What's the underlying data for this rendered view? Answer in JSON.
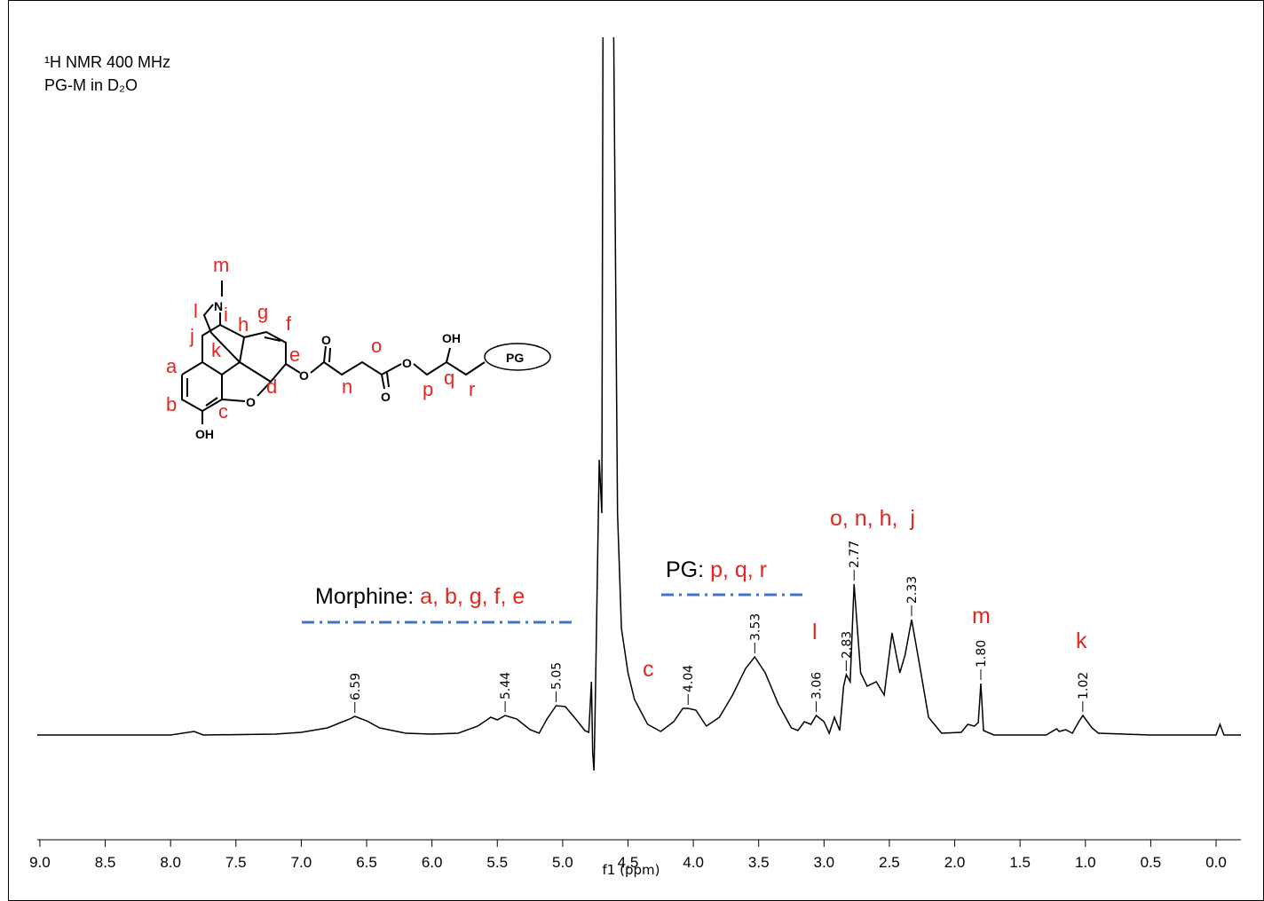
{
  "chart_data": {
    "type": "nmr",
    "title_lines": [
      "¹H NMR 400 MHz",
      "PG-M in D₂O"
    ],
    "x_label": "f1 (ppm)",
    "xlim": [
      9.02,
      -0.19
    ],
    "xticks": [
      {
        "value": 9,
        "label": "9.0"
      },
      8.5,
      {
        "value": 8,
        "label": "8.0"
      },
      7.5,
      {
        "value": 7,
        "label": "7.0"
      },
      6.5,
      {
        "value": 6,
        "label": "6.0"
      },
      5.5,
      {
        "value": 5,
        "label": "5.0"
      },
      4.5,
      {
        "value": 4,
        "label": "4.0"
      },
      3.5,
      {
        "value": 3,
        "label": "3.0"
      },
      2.5,
      {
        "value": 2,
        "label": "2.0"
      },
      1.5,
      {
        "value": 1,
        "label": "1.0"
      },
      0.5,
      {
        "value": 0,
        "label": "0.0"
      }
    ],
    "line_color": "#000000",
    "x": [
      9.02,
      8.0,
      7.82,
      7.75,
      7.2,
      7.0,
      6.8,
      6.7,
      6.63,
      6.59,
      6.5,
      6.4,
      6.2,
      6.0,
      5.8,
      5.65,
      5.55,
      5.5,
      5.44,
      5.35,
      5.25,
      5.18,
      5.12,
      5.05,
      4.98,
      4.9,
      4.83,
      4.8,
      4.78,
      4.77,
      4.76,
      4.75,
      4.72,
      4.7,
      4.68,
      4.66,
      4.63,
      4.61,
      4.58,
      4.55,
      4.5,
      4.45,
      4.35,
      4.25,
      4.15,
      4.08,
      4.04,
      3.98,
      3.9,
      3.8,
      3.7,
      3.6,
      3.53,
      3.45,
      3.35,
      3.25,
      3.2,
      3.15,
      3.1,
      3.06,
      3.0,
      2.96,
      2.92,
      2.88,
      2.85,
      2.83,
      2.8,
      2.77,
      2.72,
      2.67,
      2.6,
      2.54,
      2.48,
      2.42,
      2.38,
      2.33,
      2.27,
      2.2,
      2.1,
      1.95,
      1.9,
      1.85,
      1.82,
      1.8,
      1.78,
      1.7,
      1.3,
      1.22,
      1.2,
      1.15,
      1.1,
      1.05,
      1.02,
      0.95,
      0.9,
      0.5,
      0.0,
      -0.03,
      -0.06,
      -0.19
    ],
    "values": [
      0,
      0,
      4,
      0,
      1,
      3,
      8,
      14,
      18,
      21,
      16,
      8,
      2,
      1,
      2,
      10,
      20,
      17,
      22,
      18,
      6,
      2,
      18,
      33,
      32,
      18,
      5,
      3,
      60,
      -20,
      -40,
      40,
      310,
      250,
      1500,
      1500,
      1500,
      800,
      250,
      120,
      70,
      40,
      12,
      4,
      15,
      30,
      30,
      28,
      10,
      20,
      45,
      75,
      88,
      70,
      35,
      8,
      5,
      15,
      12,
      22,
      15,
      2,
      20,
      5,
      55,
      68,
      60,
      170,
      70,
      55,
      60,
      45,
      115,
      70,
      90,
      130,
      80,
      20,
      2,
      3,
      12,
      10,
      14,
      58,
      5,
      0,
      0,
      7,
      4,
      6,
      2,
      15,
      22,
      8,
      2,
      0,
      0,
      12,
      0,
      0
    ],
    "peak_labels": [
      6.59,
      5.44,
      5.05,
      4.04,
      3.53,
      3.06,
      2.83,
      2.77,
      2.33,
      {
        "value": 1.8,
        "label": "1.80"
      },
      1.02
    ],
    "annotations": [
      {
        "text": "c",
        "color": "#e3261f"
      },
      {
        "text": "o, n, h,  j",
        "color": "#e3261f"
      },
      {
        "text": "m",
        "color": "#e3261f"
      },
      {
        "text": "k",
        "color": "#e3261f"
      },
      {
        "text": "l",
        "color": "#e3261f"
      }
    ],
    "groups": [
      {
        "label": "Morphine:",
        "items": "a, b, g, f, e",
        "items_color": "#e3261f",
        "line_color": "#4472c4"
      },
      {
        "label": "PG:",
        "items": "p, q, r",
        "items_color": "#e3261f",
        "line_color": "#4472c4"
      }
    ]
  },
  "structure": {
    "proton_labels": [
      "m",
      "l",
      "i",
      "h",
      "g",
      "f",
      "j",
      "e",
      "a",
      "k",
      "o",
      "d",
      "n",
      "p",
      "q",
      "r",
      "b",
      "c"
    ],
    "proton_color": "#e3261f",
    "atom_labels": [
      "N",
      "O",
      "O",
      "O",
      "O",
      "OH",
      "PG",
      "O",
      "OH"
    ]
  }
}
